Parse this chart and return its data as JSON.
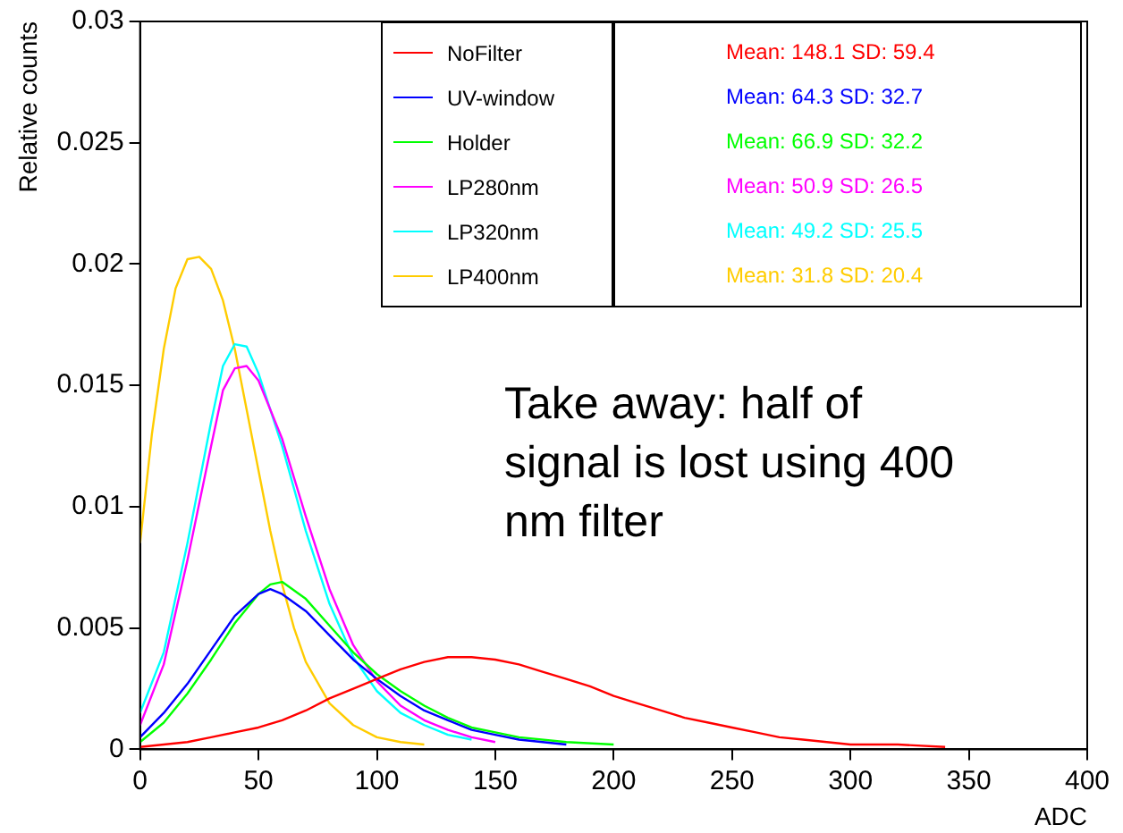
{
  "chart_data": {
    "type": "line",
    "xlabel": "ADC",
    "ylabel": "Relative counts",
    "xlim": [
      0,
      400
    ],
    "xticks": [
      0,
      50,
      100,
      150,
      200,
      250,
      300,
      350,
      400
    ],
    "ylim": [
      0,
      0.03
    ],
    "yticks": [
      0,
      0.005,
      0.01,
      0.015,
      0.02,
      0.025,
      0.03
    ],
    "legend": "top",
    "grid": false,
    "series": [
      {
        "name": "NoFilter",
        "color": "#ff0000",
        "x": [
          0,
          10,
          20,
          30,
          40,
          50,
          60,
          70,
          80,
          90,
          100,
          110,
          120,
          130,
          140,
          150,
          160,
          170,
          180,
          190,
          200,
          210,
          220,
          230,
          240,
          250,
          260,
          270,
          280,
          290,
          300,
          320,
          340
        ],
        "values": [
          0.0001,
          0.0002,
          0.0003,
          0.0005,
          0.0007,
          0.0009,
          0.0012,
          0.0016,
          0.0021,
          0.0025,
          0.0029,
          0.0033,
          0.0036,
          0.0038,
          0.0038,
          0.0037,
          0.0035,
          0.0032,
          0.0029,
          0.0026,
          0.0022,
          0.0019,
          0.0016,
          0.0013,
          0.0011,
          0.0009,
          0.0007,
          0.0005,
          0.0004,
          0.0003,
          0.0002,
          0.0002,
          0.0001
        ]
      },
      {
        "name": "UV-window",
        "color": "#0000ff",
        "x": [
          0,
          10,
          20,
          30,
          40,
          50,
          55,
          60,
          70,
          80,
          90,
          100,
          110,
          120,
          130,
          140,
          150,
          160,
          180
        ],
        "values": [
          0.0005,
          0.0015,
          0.0027,
          0.0041,
          0.0055,
          0.0064,
          0.0066,
          0.0064,
          0.0057,
          0.0047,
          0.0037,
          0.0029,
          0.0022,
          0.0016,
          0.0012,
          0.0008,
          0.0006,
          0.0004,
          0.0002
        ]
      },
      {
        "name": "Holder",
        "color": "#00ff00",
        "x": [
          0,
          10,
          20,
          30,
          40,
          50,
          55,
          60,
          70,
          80,
          90,
          100,
          110,
          120,
          130,
          140,
          150,
          160,
          180,
          200
        ],
        "values": [
          0.0003,
          0.0011,
          0.0023,
          0.0037,
          0.0052,
          0.0064,
          0.0068,
          0.0069,
          0.0062,
          0.0051,
          0.004,
          0.0031,
          0.0024,
          0.0018,
          0.0013,
          0.0009,
          0.0007,
          0.0005,
          0.0003,
          0.0002
        ]
      },
      {
        "name": "LP280nm",
        "color": "#ff00ff",
        "x": [
          0,
          10,
          20,
          30,
          35,
          40,
          45,
          50,
          60,
          70,
          80,
          90,
          100,
          110,
          120,
          130,
          140,
          150
        ],
        "values": [
          0.001,
          0.0035,
          0.0078,
          0.0125,
          0.0148,
          0.0157,
          0.0158,
          0.0152,
          0.0128,
          0.0096,
          0.0066,
          0.0043,
          0.0028,
          0.0018,
          0.0012,
          0.0008,
          0.0005,
          0.0003
        ]
      },
      {
        "name": "LP320nm",
        "color": "#00ffff",
        "x": [
          0,
          10,
          20,
          30,
          35,
          40,
          45,
          50,
          60,
          70,
          80,
          90,
          100,
          110,
          120,
          130,
          140
        ],
        "values": [
          0.0015,
          0.004,
          0.0085,
          0.0135,
          0.0158,
          0.0167,
          0.0166,
          0.0155,
          0.0125,
          0.009,
          0.006,
          0.0038,
          0.0024,
          0.0015,
          0.001,
          0.0006,
          0.0004
        ]
      },
      {
        "name": "LP400nm",
        "color": "#ffcc00",
        "x": [
          0,
          5,
          10,
          15,
          20,
          25,
          30,
          35,
          40,
          45,
          50,
          55,
          60,
          65,
          70,
          80,
          90,
          100,
          110,
          120
        ],
        "values": [
          0.0085,
          0.013,
          0.0165,
          0.019,
          0.0202,
          0.0203,
          0.0198,
          0.0185,
          0.0165,
          0.014,
          0.0115,
          0.009,
          0.0068,
          0.005,
          0.0036,
          0.0019,
          0.001,
          0.0005,
          0.0003,
          0.0002
        ]
      }
    ],
    "annotations": [
      "Mean: 148.1 SD: 59.4",
      "Mean: 64.3 SD: 32.7",
      "Mean: 66.9 SD: 32.2",
      "Mean: 50.9 SD: 26.5",
      "Mean: 49.2 SD: 25.5",
      "Mean: 31.8 SD: 20.4",
      "Take away: half of signal is lost using 400 nm filter"
    ]
  }
}
